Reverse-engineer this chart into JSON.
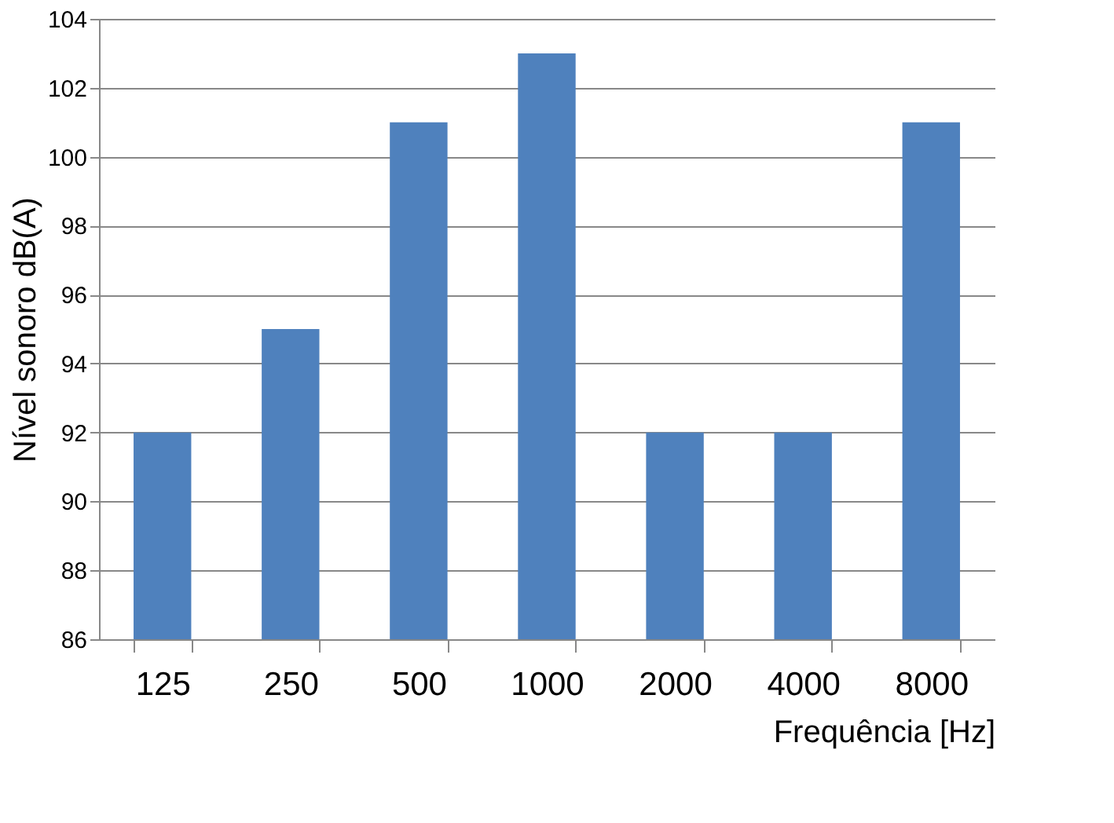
{
  "chart_data": {
    "type": "bar",
    "xlabel": "Frequência [Hz]",
    "ylabel": "Nível sonoro dB(A)",
    "categories": [
      "125",
      "250",
      "500",
      "1000",
      "2000",
      "4000",
      "8000"
    ],
    "values": [
      92,
      95,
      101,
      103,
      92,
      92,
      101
    ],
    "color": "#4f81bd",
    "ylim": [
      86,
      104
    ],
    "yticks": [
      86,
      88,
      90,
      92,
      94,
      96,
      98,
      100,
      102,
      104
    ],
    "grid": "y"
  }
}
